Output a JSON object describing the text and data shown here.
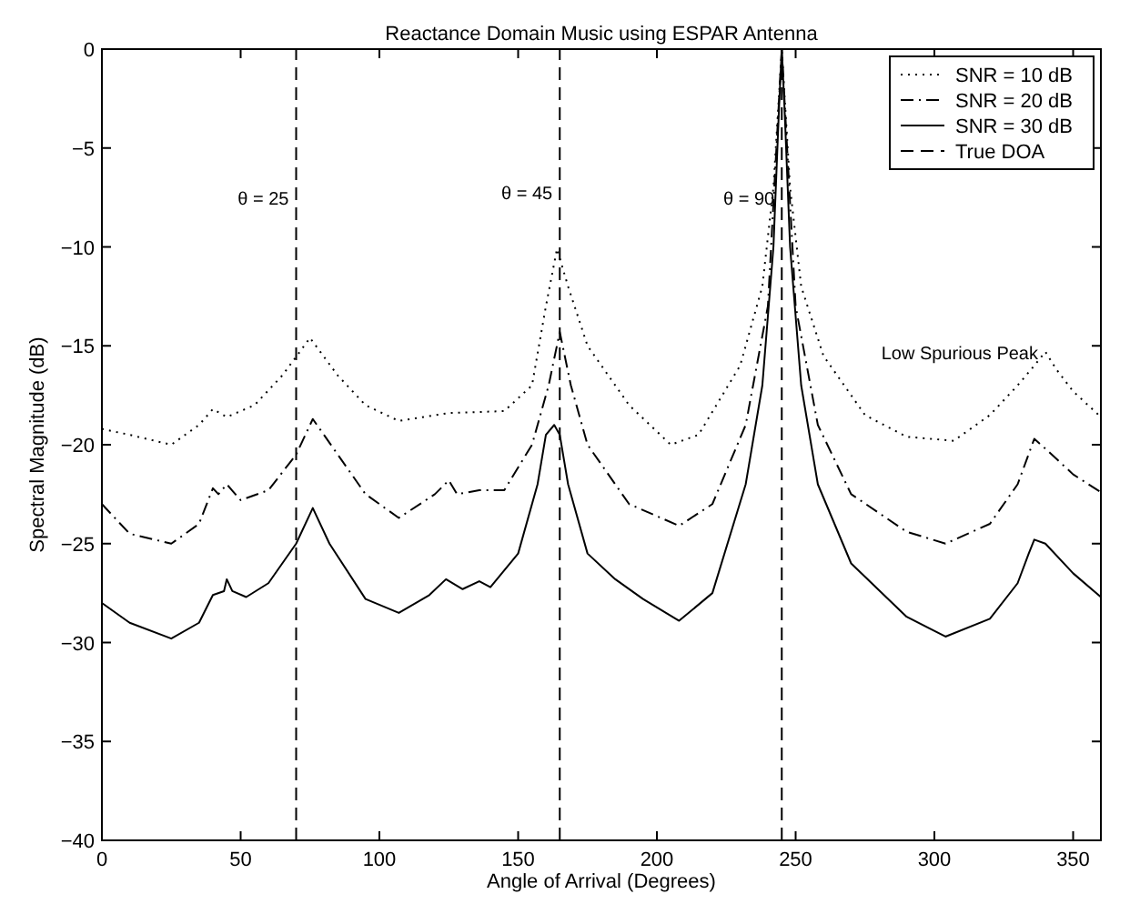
{
  "chart_data": {
    "type": "line",
    "title": "Reactance Domain Music using ESPAR Antenna",
    "xlabel": "Angle of Arrival (Degrees)",
    "ylabel": "Spectral Magnitude (dB)",
    "xlim": [
      0,
      360
    ],
    "xticks": [
      0,
      50,
      100,
      150,
      200,
      250,
      300,
      350
    ],
    "ylim": [
      -40,
      0
    ],
    "yticks": [
      0,
      -5,
      -10,
      -15,
      -20,
      -25,
      -30,
      -35,
      -40
    ],
    "grid": false,
    "legend": "top right",
    "marker": "none",
    "series": [
      {
        "name": "SNR = 10 dB",
        "color": "#000000",
        "line_style": "dotted",
        "x": [
          0,
          10,
          25,
          35,
          40,
          45,
          55,
          65,
          75,
          85,
          95,
          107,
          125,
          145,
          155,
          160,
          164,
          168,
          175,
          190,
          205,
          215,
          230,
          238,
          242,
          245,
          248,
          252,
          260,
          275,
          290,
          307,
          320,
          330,
          336,
          340,
          344,
          350,
          360
        ],
        "values": [
          -19.2,
          -19.5,
          -20,
          -19,
          -18.2,
          -18.6,
          -18,
          -16.5,
          -14.6,
          -16.5,
          -18,
          -18.8,
          -18.4,
          -18.3,
          -17,
          -13,
          -10.1,
          -12,
          -15,
          -18,
          -20,
          -19.5,
          -16,
          -12,
          -7,
          0,
          -7,
          -12,
          -15.5,
          -18.5,
          -19.6,
          -19.8,
          -18.5,
          -17,
          -16,
          -15.3,
          -16.2,
          -17.3,
          -18.6
        ]
      },
      {
        "name": "SNR = 20 dB",
        "color": "#000000",
        "line_style": "dashdot",
        "x": [
          0,
          10,
          25,
          35,
          40,
          42,
          45,
          50,
          60,
          70,
          76,
          85,
          95,
          107,
          120,
          125,
          128,
          136,
          145,
          155,
          161,
          165,
          169,
          175,
          190,
          208,
          220,
          232,
          240,
          245,
          250,
          258,
          270,
          290,
          304,
          320,
          330,
          336,
          340,
          350,
          360
        ],
        "values": [
          -23,
          -24.5,
          -25,
          -24,
          -22.2,
          -22.5,
          -22,
          -22.8,
          -22.3,
          -20.5,
          -18.7,
          -20.5,
          -22.5,
          -23.7,
          -22.5,
          -21.8,
          -22.5,
          -22.3,
          -22.3,
          -20,
          -17,
          -14.3,
          -17,
          -20,
          -23,
          -24.1,
          -23,
          -19,
          -13,
          0,
          -13,
          -19,
          -22.5,
          -24.4,
          -25,
          -24,
          -22,
          -19.7,
          -20.2,
          -21.5,
          -22.4
        ]
      },
      {
        "name": "SNR = 30 dB",
        "color": "#000000",
        "line_style": "solid",
        "x": [
          0,
          10,
          25,
          35,
          40,
          44,
          45,
          47,
          52,
          60,
          70,
          76,
          82,
          95,
          107,
          118,
          124,
          130,
          136,
          140,
          150,
          157,
          160,
          163,
          165,
          168,
          175,
          185,
          195,
          208,
          220,
          232,
          238,
          242,
          244,
          245,
          246,
          248,
          252,
          258,
          270,
          290,
          304,
          320,
          330,
          334,
          336,
          340,
          350,
          360
        ],
        "values": [
          -28,
          -29,
          -29.8,
          -29,
          -27.6,
          -27.4,
          -26.8,
          -27.4,
          -27.7,
          -27,
          -25,
          -23.2,
          -25,
          -27.8,
          -28.5,
          -27.6,
          -26.8,
          -27.3,
          -26.9,
          -27.2,
          -25.5,
          -22,
          -19.5,
          -19,
          -19.5,
          -22,
          -25.5,
          -26.8,
          -27.8,
          -28.9,
          -27.5,
          -22,
          -17,
          -10,
          -3,
          0,
          -3,
          -10,
          -17,
          -22,
          -26,
          -28.7,
          -29.7,
          -28.8,
          -27,
          -25.5,
          -24.8,
          -25,
          -26.5,
          -27.7
        ]
      },
      {
        "name": "True DOA",
        "color": "#000000",
        "line_style": "dashed",
        "x": [
          70,
          70
        ],
        "values": [
          -40,
          0
        ]
      },
      {
        "color": "#000000",
        "line_style": "dashed",
        "x": [
          165,
          165
        ],
        "values": [
          -40,
          0
        ]
      },
      {
        "color": "#000000",
        "line_style": "dashed",
        "x": [
          245,
          245
        ],
        "values": [
          -40,
          0
        ]
      }
    ],
    "annotations": [
      {
        "text": "θ = 25",
        "x": 70,
        "y": -7.5
      },
      {
        "text": "θ = 45",
        "x": 165,
        "y": -7.2
      },
      {
        "text": "θ = 90",
        "x": 245,
        "y": -7.5
      },
      {
        "text": "Low Spurious Peak",
        "x": 340,
        "y": -15.3
      }
    ]
  }
}
